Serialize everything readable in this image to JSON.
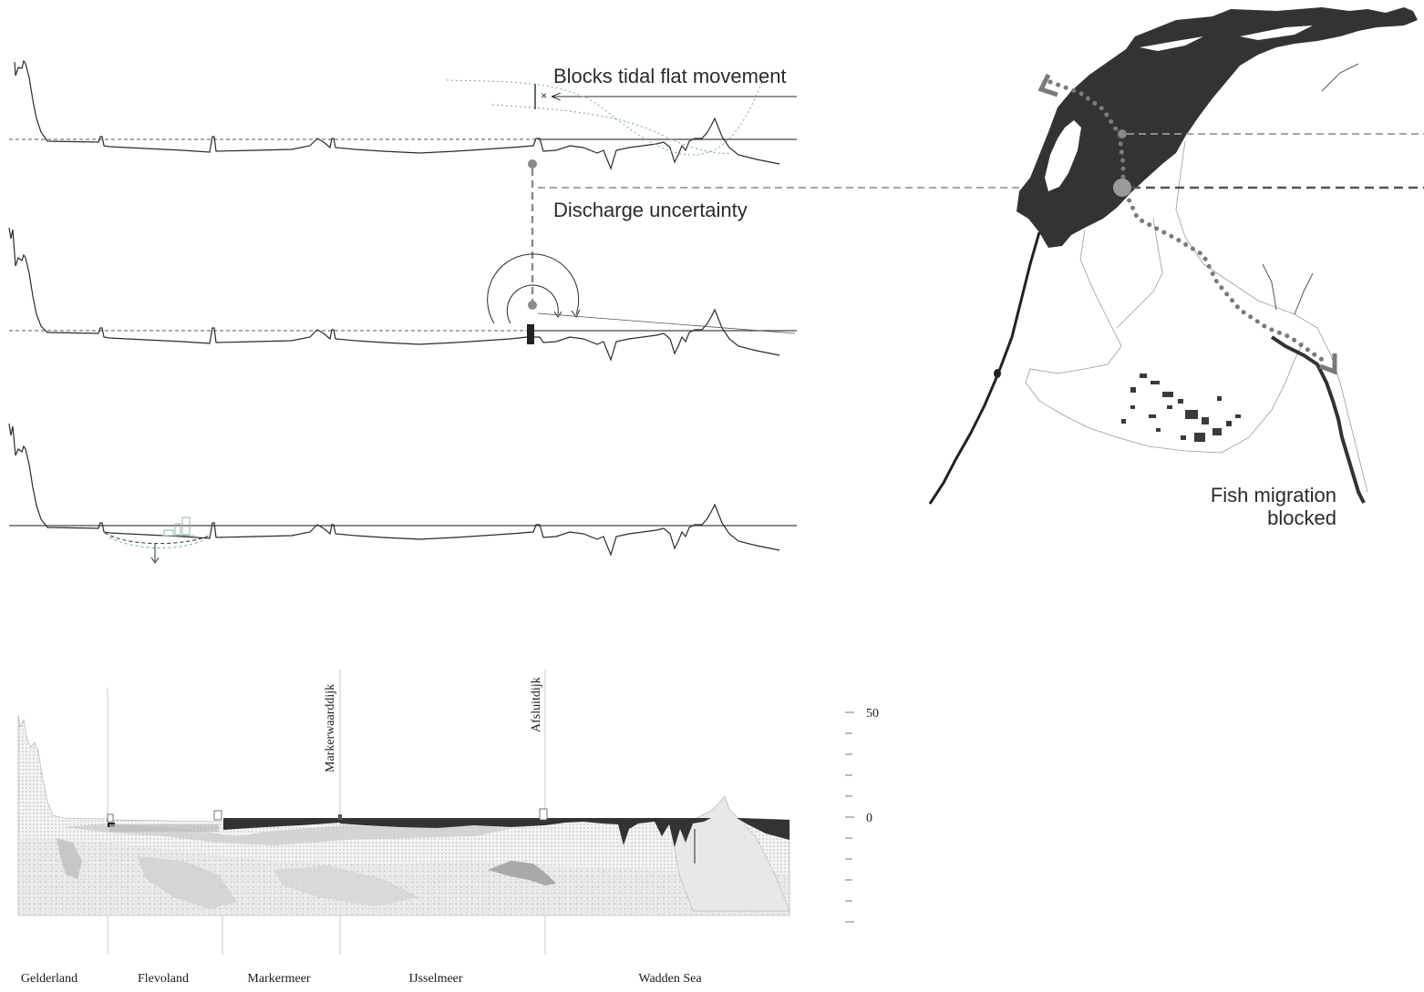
{
  "annotations": {
    "tidal": "Blocks tidal flat movement",
    "discharge": "Discharge uncertainty",
    "fish_line1": "Fish migration",
    "fish_line2": "blocked"
  },
  "section": {
    "vertical_labels": {
      "markerwaarddijk": "Markerwaarddijk",
      "afsluitdijk": "Afsluitdijk"
    },
    "scale": {
      "upper": "50",
      "zero": "0"
    },
    "regions": [
      "Gelderland",
      "Flevoland",
      "Markermeer",
      "IJsselmeer",
      "Wadden Sea"
    ]
  },
  "colors": {
    "ink": "#2b2b2b",
    "dark_water": "#333333",
    "dash_gray": "#8a8a8a",
    "dot_gray": "#7a7a7a",
    "green_dotted": "#7aa89a",
    "light_fill": "#d6d6d6"
  }
}
